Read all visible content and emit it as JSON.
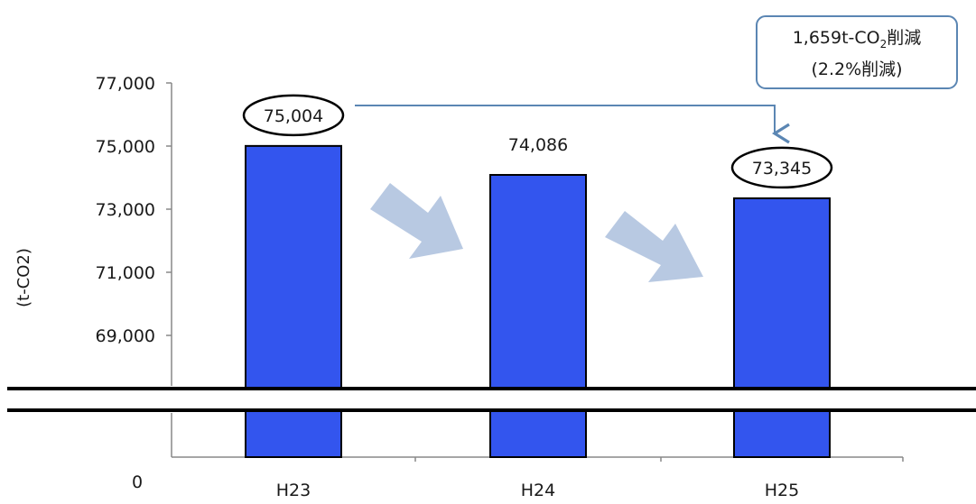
{
  "chart_data": {
    "type": "bar",
    "categories": [
      "H23",
      "H24",
      "H25"
    ],
    "values": [
      75004,
      74086,
      73345
    ],
    "data_labels": [
      "75,004",
      "74,086",
      "73,345"
    ],
    "circled_labels": [
      true,
      false,
      true
    ],
    "y_ticks": [
      {
        "value": 77000,
        "label": "77,000"
      },
      {
        "value": 75000,
        "label": "75,000"
      },
      {
        "value": 73000,
        "label": "73,000"
      },
      {
        "value": 71000,
        "label": "71,000"
      },
      {
        "value": 69000,
        "label": "69,000"
      }
    ],
    "zero_label": "0",
    "ylim": [
      68000,
      77500
    ],
    "axis_break": true,
    "ylabel": "(t-CO2)",
    "xlabel": "",
    "title": "",
    "legend": false,
    "grid": false,
    "bar_color": "#3355ee",
    "trend_arrow_color": "#b8c9e2",
    "callout": {
      "line1_prefix": "1,659t-CO",
      "line1_sub": "2",
      "line1_suffix": "削減",
      "line2": "(2.2%削減)",
      "from_category": "H23",
      "to_category": "H25",
      "arrow_color": "#5b86b3"
    }
  }
}
